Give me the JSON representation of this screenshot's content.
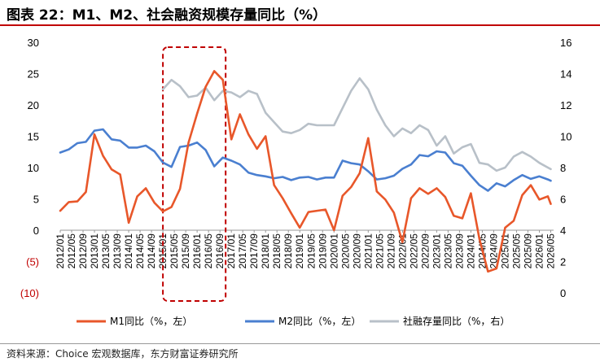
{
  "title": "图表 22：M1、M2、社会融资规模存量同比（%）",
  "source": "资料来源：Choice 宏观数据库，东方财富证券研究所",
  "colors": {
    "m1": "#e8572a",
    "m2": "#4a7fd0",
    "tsf": "#b8c0c8",
    "highlight": "#c00000",
    "negative_tick": "#c00000"
  },
  "chart_data": {
    "type": "line",
    "title": "图表 22：M1、M2、社会融资规模存量同比（%）",
    "xlabel": "",
    "ylabel": "",
    "legend_position": "bottom",
    "grid": false,
    "left_axis": {
      "ylim": [
        -10,
        30
      ],
      "ticks": [
        "30",
        "25",
        "20",
        "15",
        "10",
        "5",
        "0",
        "(5)",
        "(10)"
      ],
      "tick_values": [
        30,
        25,
        20,
        15,
        10,
        5,
        0,
        -5,
        -10
      ]
    },
    "right_axis": {
      "ylim": [
        0,
        16
      ],
      "ticks": [
        "16",
        "14",
        "12",
        "10",
        "8",
        "6",
        "4",
        "2",
        "0"
      ],
      "tick_values": [
        16,
        14,
        12,
        10,
        8,
        6,
        4,
        2,
        0
      ]
    },
    "x_ticks": [
      "2012/01",
      "2012/05",
      "2012/09",
      "2013/01",
      "2013/05",
      "2013/09",
      "2014/01",
      "2014/05",
      "2014/09",
      "2015/01",
      "2015/05",
      "2015/09",
      "2016/01",
      "2016/05",
      "2016/09",
      "2017/01",
      "2017/05",
      "2017/09",
      "2018/01",
      "2018/05",
      "2018/09",
      "2019/01",
      "2019/05",
      "2019/09",
      "2020/01",
      "2020/05",
      "2020/09",
      "2021/01",
      "2021/05",
      "2021/09",
      "2022/01",
      "2022/05",
      "2022/09",
      "2023/01",
      "2023/05",
      "2023/09",
      "2024/01",
      "2024/05",
      "2024/09",
      "2025/01",
      "2025/05",
      "2025/09",
      "2026/01",
      "2026/05"
    ],
    "highlight_period": [
      "2015/01",
      "2016/11"
    ],
    "series": [
      {
        "name": "M1同比（%，左）",
        "axis": "left",
        "x": [
          "2012/01",
          "2012/04",
          "2012/07",
          "2012/10",
          "2013/01",
          "2013/04",
          "2013/07",
          "2013/10",
          "2014/01",
          "2014/04",
          "2014/07",
          "2014/10",
          "2015/01",
          "2015/04",
          "2015/07",
          "2015/10",
          "2016/01",
          "2016/04",
          "2016/07",
          "2016/10",
          "2017/01",
          "2017/04",
          "2017/07",
          "2017/10",
          "2018/01",
          "2018/04",
          "2018/07",
          "2018/10",
          "2019/01",
          "2019/04",
          "2019/07",
          "2019/10",
          "2020/01",
          "2020/04",
          "2020/07",
          "2020/10",
          "2021/01",
          "2021/04",
          "2021/07",
          "2021/10",
          "2022/01",
          "2022/04",
          "2022/07",
          "2022/10",
          "2023/01",
          "2023/04",
          "2023/07",
          "2023/10",
          "2024/01",
          "2024/04",
          "2024/07",
          "2024/10",
          "2025/01",
          "2025/04",
          "2025/07",
          "2025/10",
          "2026/01",
          "2026/04",
          "2026/05"
        ],
        "values": [
          3.1,
          4.5,
          4.6,
          6.1,
          15.3,
          11.9,
          9.7,
          8.9,
          1.2,
          5.4,
          6.7,
          4.4,
          3.0,
          3.7,
          6.6,
          14.0,
          18.6,
          22.9,
          25.4,
          24.0,
          14.5,
          18.5,
          15.3,
          13.0,
          15.0,
          7.2,
          5.1,
          2.7,
          0.4,
          2.9,
          3.1,
          3.3,
          0.0,
          5.5,
          6.9,
          9.1,
          14.7,
          6.2,
          4.9,
          2.8,
          -1.9,
          5.1,
          6.7,
          5.8,
          6.7,
          5.3,
          2.3,
          1.9,
          5.9,
          -1.4,
          -6.6,
          -6.1,
          0.4,
          1.5,
          5.6,
          7.2,
          4.9,
          5.4,
          4.2
        ]
      },
      {
        "name": "M2同比（%，左）",
        "axis": "left",
        "x": [
          "2012/01",
          "2012/04",
          "2012/07",
          "2012/10",
          "2013/01",
          "2013/04",
          "2013/07",
          "2013/10",
          "2014/01",
          "2014/04",
          "2014/07",
          "2014/10",
          "2015/01",
          "2015/04",
          "2015/07",
          "2015/10",
          "2016/01",
          "2016/04",
          "2016/07",
          "2016/10",
          "2017/01",
          "2017/04",
          "2017/07",
          "2017/10",
          "2018/01",
          "2018/04",
          "2018/07",
          "2018/10",
          "2019/01",
          "2019/04",
          "2019/07",
          "2019/10",
          "2020/01",
          "2020/04",
          "2020/07",
          "2020/10",
          "2021/01",
          "2021/04",
          "2021/07",
          "2021/10",
          "2022/01",
          "2022/04",
          "2022/07",
          "2022/10",
          "2023/01",
          "2023/04",
          "2023/07",
          "2023/10",
          "2024/01",
          "2024/04",
          "2024/07",
          "2024/10",
          "2025/01",
          "2025/04",
          "2025/07",
          "2025/10",
          "2026/01",
          "2026/04",
          "2026/05"
        ],
        "values": [
          12.4,
          12.9,
          13.9,
          14.1,
          15.9,
          16.1,
          14.5,
          14.3,
          13.2,
          13.2,
          13.5,
          12.6,
          10.8,
          10.1,
          13.3,
          13.5,
          14.0,
          12.8,
          10.2,
          11.6,
          11.1,
          10.5,
          9.2,
          8.8,
          8.6,
          8.3,
          8.5,
          8.0,
          8.4,
          8.5,
          8.1,
          8.4,
          8.4,
          11.1,
          10.7,
          10.5,
          9.4,
          8.1,
          8.3,
          8.7,
          9.8,
          10.5,
          12.0,
          11.8,
          12.6,
          12.4,
          10.7,
          10.3,
          8.7,
          7.2,
          6.3,
          7.5,
          7.0,
          8.0,
          8.8,
          8.2,
          8.6,
          8.1,
          7.9
        ]
      },
      {
        "name": "社融存量同比（%，右）",
        "axis": "right",
        "x": [
          "2015/01",
          "2015/04",
          "2015/07",
          "2015/10",
          "2016/01",
          "2016/04",
          "2016/07",
          "2016/10",
          "2017/01",
          "2017/04",
          "2017/07",
          "2017/10",
          "2018/01",
          "2018/04",
          "2018/07",
          "2018/10",
          "2019/01",
          "2019/04",
          "2019/07",
          "2019/10",
          "2020/01",
          "2020/04",
          "2020/07",
          "2020/10",
          "2021/01",
          "2021/04",
          "2021/07",
          "2021/10",
          "2022/01",
          "2022/04",
          "2022/07",
          "2022/10",
          "2023/01",
          "2023/04",
          "2023/07",
          "2023/10",
          "2024/01",
          "2024/04",
          "2024/07",
          "2024/10",
          "2025/01",
          "2025/04",
          "2025/07",
          "2025/10",
          "2026/01",
          "2026/04",
          "2026/05"
        ],
        "values": [
          13.0,
          13.6,
          13.2,
          12.5,
          12.6,
          13.1,
          12.3,
          12.9,
          12.8,
          12.5,
          12.9,
          12.7,
          11.5,
          10.9,
          10.3,
          10.2,
          10.4,
          10.8,
          10.7,
          10.7,
          10.7,
          11.8,
          12.9,
          13.7,
          13.0,
          11.7,
          10.7,
          10.0,
          10.5,
          10.2,
          10.7,
          10.4,
          9.4,
          10.0,
          8.9,
          9.3,
          9.5,
          8.3,
          8.2,
          7.8,
          8.0,
          8.7,
          9.0,
          8.7,
          8.3,
          8.0,
          7.9
        ]
      }
    ]
  },
  "legend": [
    {
      "label": "M1同比（%，左）"
    },
    {
      "label": "M2同比（%，左）"
    },
    {
      "label": "社融存量同比（%，右）"
    }
  ]
}
